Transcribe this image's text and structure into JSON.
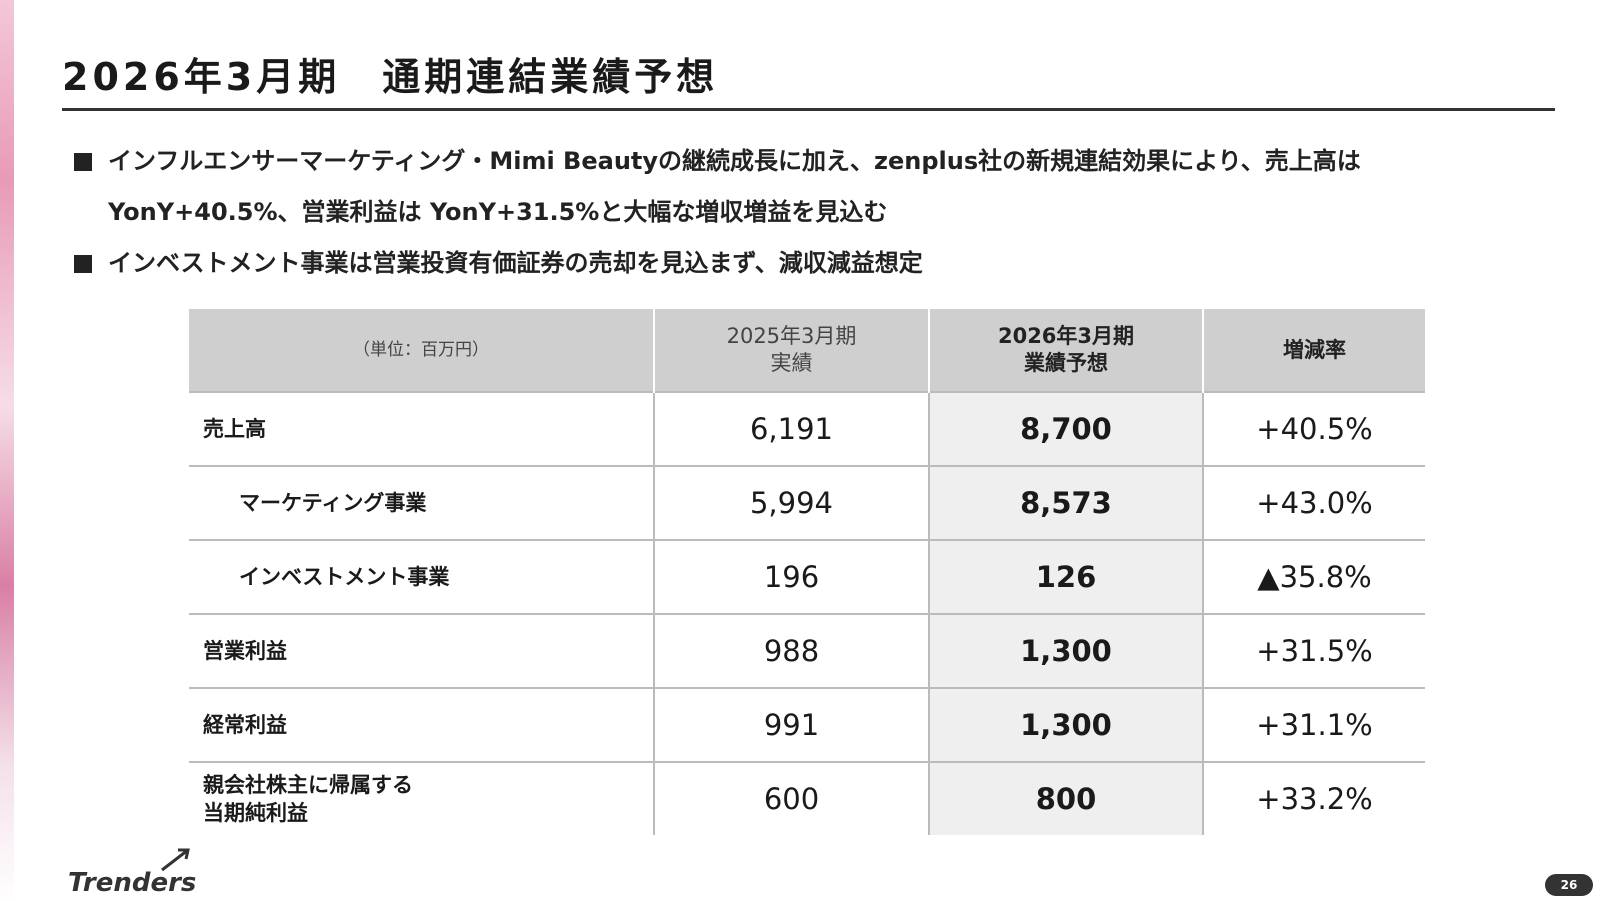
{
  "header": {
    "title": "2026年3月期　通期連結業績予想"
  },
  "bullets": [
    "インフルエンサーマーケティング・Mimi Beautyの継続成長に加え、zenplus社の新規連結効果により、売上高は YonY+40.5%、営業利益は YonY+31.5%と大幅な増収増益を見込む",
    "インベストメント事業は営業投資有価証券の売却を見込まず、減収減益想定"
  ],
  "table": {
    "header": [
      [
        "（単位：百万円）"
      ],
      [
        "2025年3月期",
        "実績"
      ],
      [
        "2026年3月期",
        "業績予想"
      ],
      [
        "増減率"
      ]
    ],
    "rows": [
      {
        "label": [
          "売上高"
        ],
        "sub": false,
        "cells": [
          "6,191",
          "8,700",
          "+40.5%"
        ]
      },
      {
        "label": [
          "マーケティング事業"
        ],
        "sub": true,
        "cells": [
          "5,994",
          "8,573",
          "+43.0%"
        ]
      },
      {
        "label": [
          "インベストメント事業"
        ],
        "sub": true,
        "cells": [
          "196",
          "126",
          "▲35.8%"
        ]
      },
      {
        "label": [
          "営業利益"
        ],
        "sub": false,
        "cells": [
          "988",
          "1,300",
          "+31.5%"
        ]
      },
      {
        "label": [
          "経常利益"
        ],
        "sub": false,
        "cells": [
          "991",
          "1,300",
          "+31.1%"
        ]
      },
      {
        "label": [
          "親会社株主に帰属する",
          "当期純利益"
        ],
        "sub": false,
        "cells": [
          "600",
          "800",
          "+33.2%"
        ]
      }
    ]
  },
  "footer": {
    "logo": "Trenders",
    "page": "26"
  }
}
